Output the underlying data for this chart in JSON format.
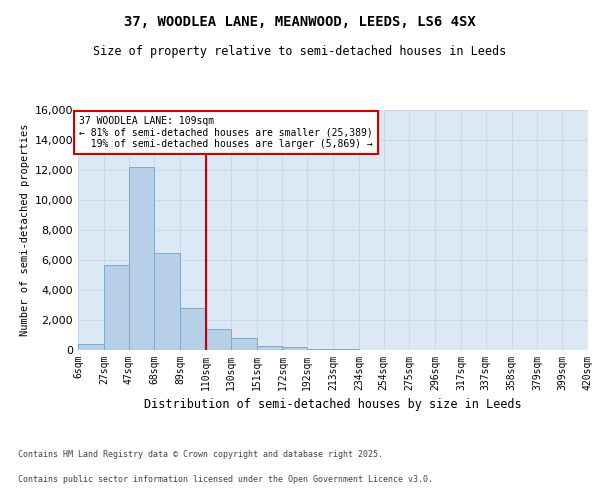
{
  "title_line1": "37, WOODLEA LANE, MEANWOOD, LEEDS, LS6 4SX",
  "title_line2": "Size of property relative to semi-detached houses in Leeds",
  "xlabel": "Distribution of semi-detached houses by size in Leeds",
  "ylabel": "Number of semi-detached properties",
  "bar_color": "#b8cfe8",
  "bar_edge_color": "#7aaad0",
  "grid_color": "#c8d4e8",
  "background_color": "#dde8f5",
  "annotation_box_color": "#cc0000",
  "vline_color": "#cc0000",
  "property_label": "37 WOODLEA LANE: 109sqm",
  "pct_smaller": 81,
  "n_smaller": 25389,
  "pct_larger": 19,
  "n_larger": 5869,
  "footer_line1": "Contains HM Land Registry data © Crown copyright and database right 2025.",
  "footer_line2": "Contains public sector information licensed under the Open Government Licence v3.0.",
  "bin_edges": [
    6,
    27,
    47,
    68,
    89,
    110,
    130,
    151,
    172,
    192,
    213,
    234,
    254,
    275,
    296,
    317,
    337,
    358,
    379,
    399,
    420
  ],
  "bin_labels": [
    "6sqm",
    "27sqm",
    "47sqm",
    "68sqm",
    "89sqm",
    "110sqm",
    "130sqm",
    "151sqm",
    "172sqm",
    "192sqm",
    "213sqm",
    "234sqm",
    "254sqm",
    "275sqm",
    "296sqm",
    "317sqm",
    "337sqm",
    "358sqm",
    "379sqm",
    "399sqm",
    "420sqm"
  ],
  "counts": [
    400,
    5700,
    12200,
    6500,
    2800,
    1400,
    800,
    300,
    200,
    100,
    60,
    20,
    10,
    5,
    3,
    2,
    1,
    1,
    0,
    0
  ],
  "vline_x": 110,
  "ylim": [
    0,
    16000
  ],
  "yticks": [
    0,
    2000,
    4000,
    6000,
    8000,
    10000,
    12000,
    14000,
    16000
  ]
}
